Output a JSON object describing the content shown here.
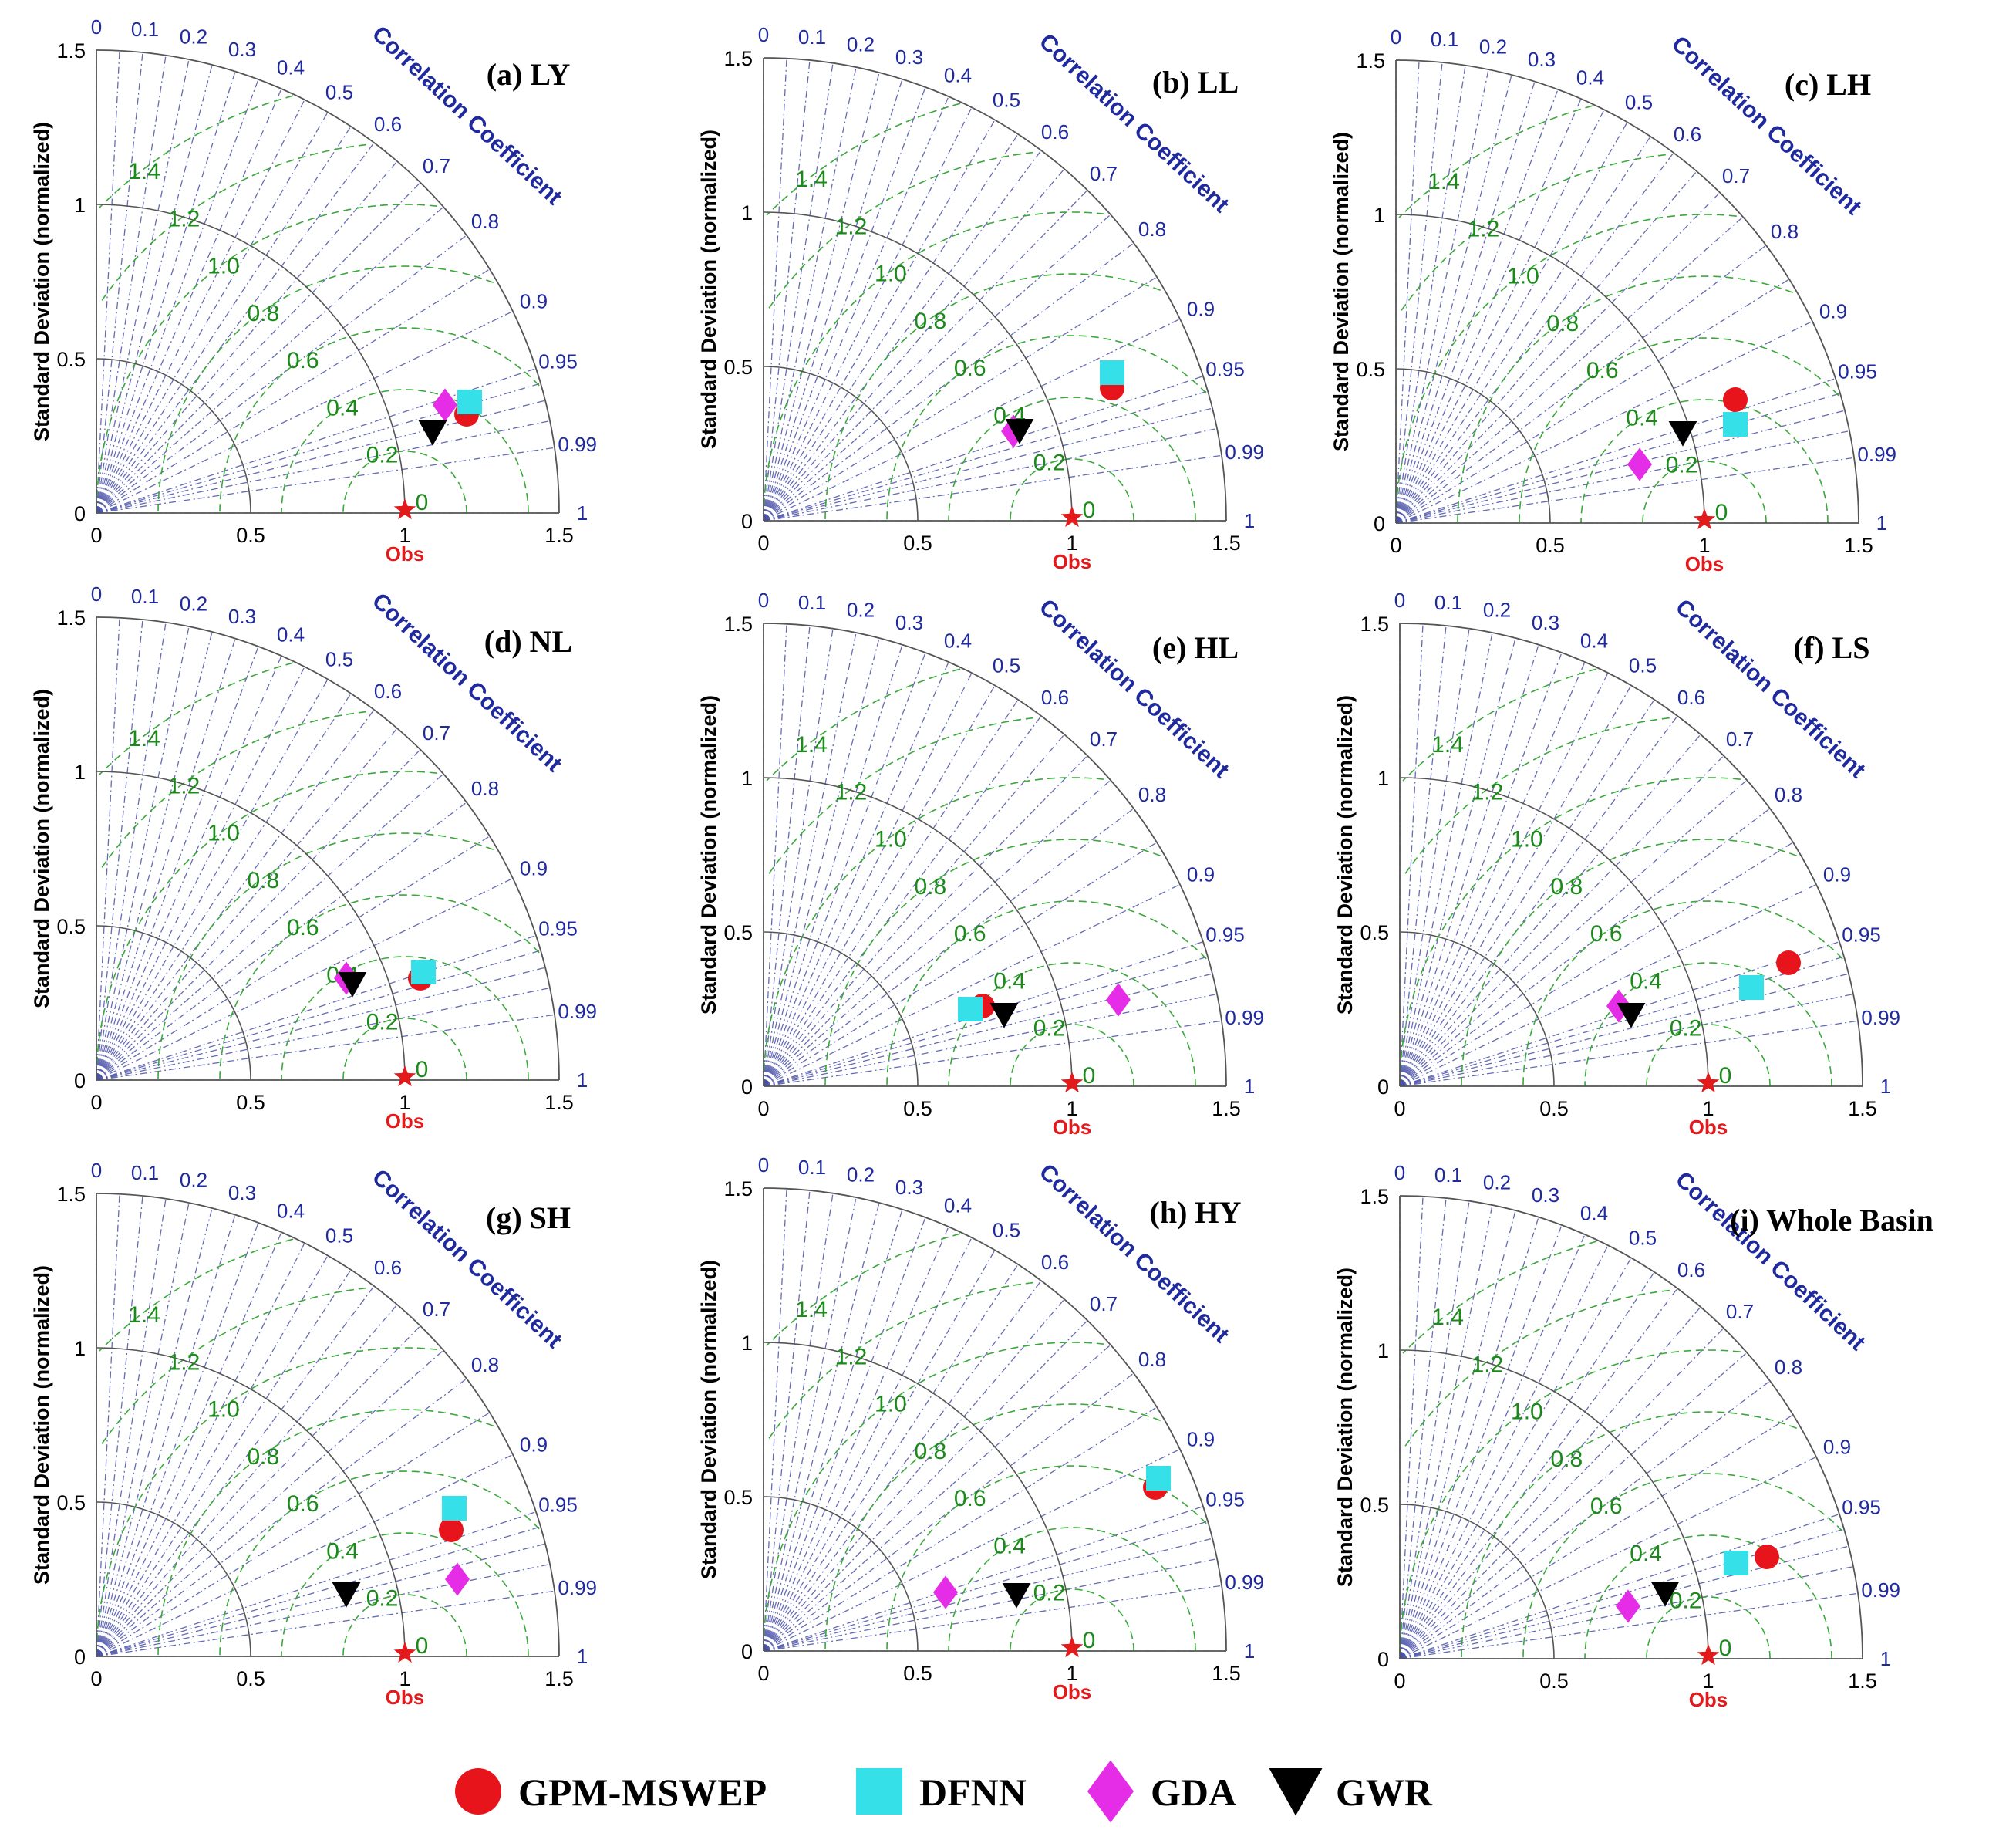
{
  "common": {
    "y_axis_label": "Standard Deviation (normalized)",
    "corr_title": "Correlation Coefficient",
    "obs_label": "Obs",
    "obs_marker": "star-icon",
    "std_ticks": [
      0,
      0.5,
      1,
      1.5
    ],
    "std_tick_labels": [
      "0",
      "0.5",
      "1",
      "1.5"
    ],
    "corr_ticks": [
      0,
      0.1,
      0.2,
      0.3,
      0.4,
      0.5,
      0.6,
      0.7,
      0.8,
      0.9,
      0.95,
      0.99,
      1
    ],
    "corr_tick_labels": [
      "0",
      "0.1",
      "0.2",
      "0.3",
      "0.4",
      "0.5",
      "0.6",
      "0.7",
      "0.8",
      "0.9",
      "0.95",
      "0.99",
      "1"
    ],
    "rms_ticks": [
      0,
      0.2,
      0.4,
      0.6,
      0.8,
      1.0,
      1.2,
      1.4
    ],
    "rms_tick_labels": [
      "0",
      "0.2",
      "0.4",
      "0.6",
      "0.8",
      "1.0",
      "1.2",
      "1.4"
    ],
    "colors": {
      "axis": "#555555",
      "corr_line": "#4a52a8",
      "rms": "#3aa83a",
      "gpm": "#e8141b",
      "dfnn": "#35e0e8",
      "gda": "#e52de8",
      "gwr": "#000000",
      "obs": "#e31a1c"
    }
  },
  "legend": [
    {
      "label": "GPM-MSWEP",
      "marker": "circle",
      "color": "#e8141b"
    },
    {
      "label": "DFNN",
      "marker": "square",
      "color": "#35e0e8"
    },
    {
      "label": "GDA",
      "marker": "diamond",
      "color": "#e52de8"
    },
    {
      "label": "GWR",
      "marker": "triangle-down",
      "color": "#000000"
    }
  ],
  "chart_data": [
    {
      "type": "scatter",
      "subtype": "taylor-diagram",
      "title": "(a) LY",
      "xlabel": "",
      "ylabel": "Standard Deviation (normalized)",
      "xlim": [
        0,
        1.5
      ],
      "ylim": [
        0,
        1.5
      ],
      "series": [
        {
          "name": "GPM-MSWEP",
          "x": 1.2,
          "y": 0.32
        },
        {
          "name": "DFNN",
          "x": 1.21,
          "y": 0.36
        },
        {
          "name": "GDA",
          "x": 1.13,
          "y": 0.35
        },
        {
          "name": "GWR",
          "x": 1.09,
          "y": 0.26
        }
      ]
    },
    {
      "type": "scatter",
      "subtype": "taylor-diagram",
      "title": "(b) LL",
      "xlabel": "",
      "ylabel": "Standard Deviation (normalized)",
      "xlim": [
        0,
        1.5
      ],
      "ylim": [
        0,
        1.5
      ],
      "series": [
        {
          "name": "GPM-MSWEP",
          "x": 1.13,
          "y": 0.43
        },
        {
          "name": "DFNN",
          "x": 1.13,
          "y": 0.48
        },
        {
          "name": "GDA",
          "x": 0.81,
          "y": 0.29
        },
        {
          "name": "GWR",
          "x": 0.83,
          "y": 0.29
        }
      ]
    },
    {
      "type": "scatter",
      "subtype": "taylor-diagram",
      "title": "(c) LH",
      "xlabel": "",
      "ylabel": "Standard Deviation (normalized)",
      "xlim": [
        0,
        1.5
      ],
      "ylim": [
        0,
        1.5
      ],
      "series": [
        {
          "name": "GPM-MSWEP",
          "x": 1.1,
          "y": 0.4
        },
        {
          "name": "DFNN",
          "x": 1.1,
          "y": 0.32
        },
        {
          "name": "GDA",
          "x": 0.79,
          "y": 0.19
        },
        {
          "name": "GWR",
          "x": 0.93,
          "y": 0.29
        }
      ]
    },
    {
      "type": "scatter",
      "subtype": "taylor-diagram",
      "title": "(d) NL",
      "xlabel": "",
      "ylabel": "Standard Deviation (normalized)",
      "xlim": [
        0,
        1.5
      ],
      "ylim": [
        0,
        1.5
      ],
      "series": [
        {
          "name": "GPM-MSWEP",
          "x": 1.05,
          "y": 0.33
        },
        {
          "name": "DFNN",
          "x": 1.06,
          "y": 0.35
        },
        {
          "name": "GDA",
          "x": 0.81,
          "y": 0.33
        },
        {
          "name": "GWR",
          "x": 0.83,
          "y": 0.31
        }
      ]
    },
    {
      "type": "scatter",
      "subtype": "taylor-diagram",
      "title": "(e) HL",
      "xlabel": "",
      "ylabel": "Standard Deviation (normalized)",
      "xlim": [
        0,
        1.5
      ],
      "ylim": [
        0,
        1.5
      ],
      "series": [
        {
          "name": "GPM-MSWEP",
          "x": 0.71,
          "y": 0.26
        },
        {
          "name": "DFNN",
          "x": 0.67,
          "y": 0.25
        },
        {
          "name": "GDA",
          "x": 1.15,
          "y": 0.28
        },
        {
          "name": "GWR",
          "x": 0.78,
          "y": 0.23
        }
      ]
    },
    {
      "type": "scatter",
      "subtype": "taylor-diagram",
      "title": "(f) LS",
      "xlabel": "",
      "ylabel": "Standard Deviation (normalized)",
      "xlim": [
        0,
        1.5
      ],
      "ylim": [
        0,
        1.5
      ],
      "series": [
        {
          "name": "GPM-MSWEP",
          "x": 1.26,
          "y": 0.4
        },
        {
          "name": "DFNN",
          "x": 1.14,
          "y": 0.32
        },
        {
          "name": "GDA",
          "x": 0.71,
          "y": 0.26
        },
        {
          "name": "GWR",
          "x": 0.75,
          "y": 0.23
        }
      ]
    },
    {
      "type": "scatter",
      "subtype": "taylor-diagram",
      "title": "(g) SH",
      "xlabel": "",
      "ylabel": "Standard Deviation (normalized)",
      "xlim": [
        0,
        1.5
      ],
      "ylim": [
        0,
        1.5
      ],
      "series": [
        {
          "name": "GPM-MSWEP",
          "x": 1.15,
          "y": 0.41
        },
        {
          "name": "DFNN",
          "x": 1.16,
          "y": 0.48
        },
        {
          "name": "GDA",
          "x": 1.17,
          "y": 0.25
        },
        {
          "name": "GWR",
          "x": 0.81,
          "y": 0.2
        }
      ]
    },
    {
      "type": "scatter",
      "subtype": "taylor-diagram",
      "title": "(h) HY",
      "xlabel": "",
      "ylabel": "Standard Deviation (normalized)",
      "xlim": [
        0,
        1.5
      ],
      "ylim": [
        0,
        1.5
      ],
      "series": [
        {
          "name": "GPM-MSWEP",
          "x": 1.27,
          "y": 0.53
        },
        {
          "name": "DFNN",
          "x": 1.28,
          "y": 0.56
        },
        {
          "name": "GDA",
          "x": 0.59,
          "y": 0.19
        },
        {
          "name": "GWR",
          "x": 0.82,
          "y": 0.18
        }
      ]
    },
    {
      "type": "scatter",
      "subtype": "taylor-diagram",
      "title": "(i)  Whole Basin",
      "xlabel": "",
      "ylabel": "Standard Deviation (normalized)",
      "xlim": [
        0,
        1.5
      ],
      "ylim": [
        0,
        1.5
      ],
      "series": [
        {
          "name": "GPM-MSWEP",
          "x": 1.19,
          "y": 0.33
        },
        {
          "name": "DFNN",
          "x": 1.09,
          "y": 0.31
        },
        {
          "name": "GDA",
          "x": 0.74,
          "y": 0.17
        },
        {
          "name": "GWR",
          "x": 0.86,
          "y": 0.21
        }
      ]
    }
  ]
}
